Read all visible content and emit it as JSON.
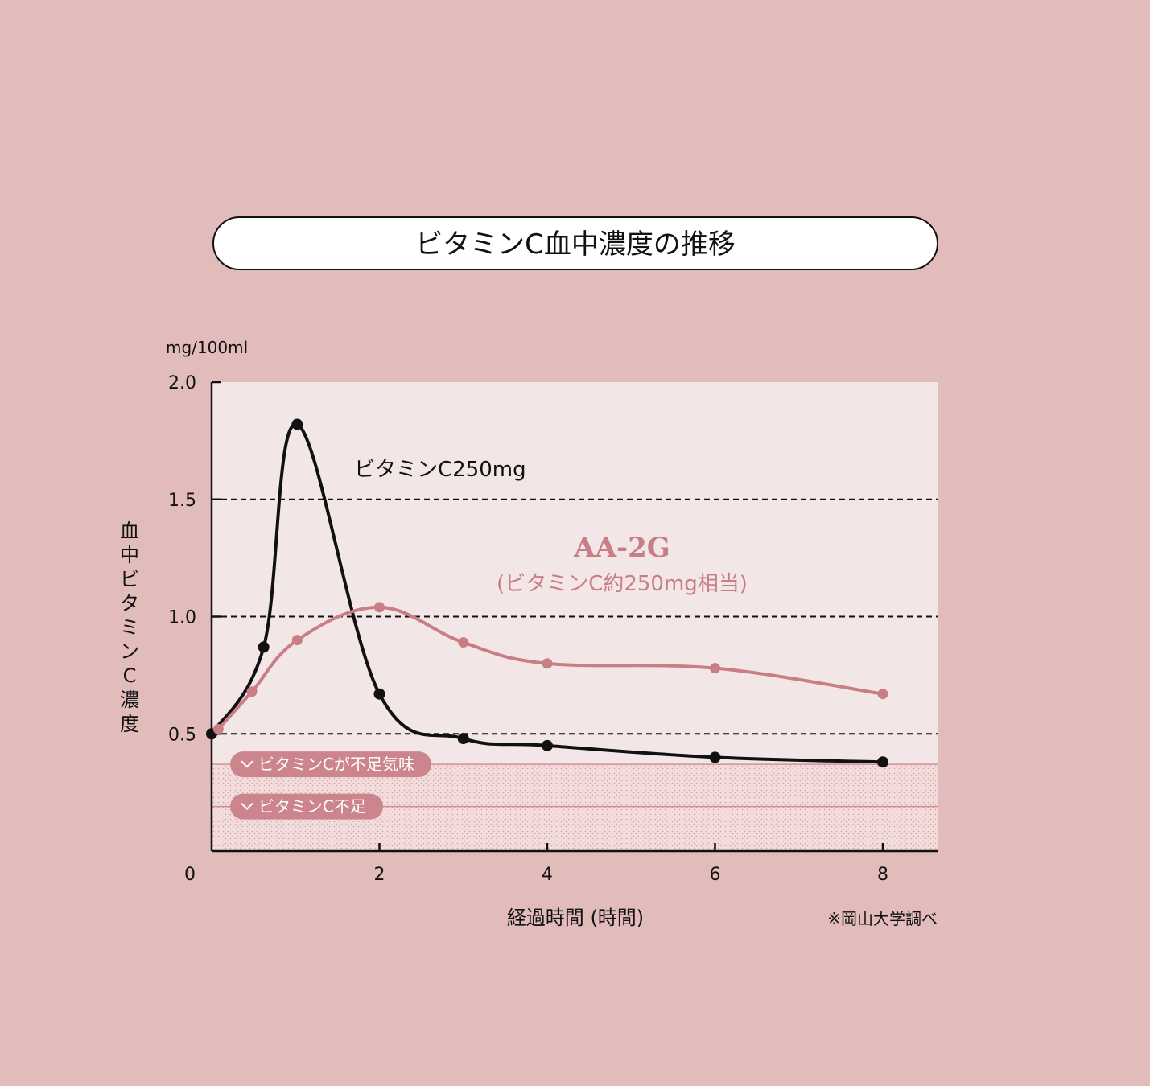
{
  "title": "ビタミンC血中濃度の推移",
  "unit_label": "mg/100ml",
  "source_note": "※岡山大学調べ",
  "chart_data": {
    "type": "line",
    "title": "ビタミンC血中濃度の推移",
    "xlabel": "経過時間 (時間)",
    "ylabel": "血中ビタミンC濃度",
    "xlim": [
      0,
      8.6
    ],
    "ylim": [
      0,
      2.0
    ],
    "x_ticks": [
      0,
      2,
      4,
      6,
      8
    ],
    "x_tick_labels": [
      "0",
      "2",
      "4",
      "6",
      "8"
    ],
    "y_ticks": [
      0.5,
      1.0,
      1.5,
      2.0
    ],
    "y_tick_labels": [
      "0.5",
      "1.0",
      "1.5",
      "2.0"
    ],
    "grid": "dashed horizontal at 0.5, 1.0, 1.5",
    "bands": [
      {
        "label": "ビタミンCが不足気味",
        "from": 0.19,
        "to": 0.37
      },
      {
        "label": "ビタミンC不足",
        "from": 0.0,
        "to": 0.19
      }
    ],
    "series": [
      {
        "name": "ビタミンC250mg",
        "color": "#111111",
        "x": [
          0,
          0.62,
          1.02,
          2.0,
          3.0,
          4.0,
          6.0,
          8.0
        ],
        "y": [
          0.5,
          0.87,
          1.82,
          0.67,
          0.48,
          0.45,
          0.4,
          0.38
        ]
      },
      {
        "name": "AA-2G",
        "subtitle": "(ビタミンC約250mg相当)",
        "color": "#c97d84",
        "x": [
          0.08,
          0.48,
          1.02,
          2.0,
          3.0,
          4.0,
          6.0,
          8.0
        ],
        "y": [
          0.52,
          0.68,
          0.9,
          1.04,
          0.89,
          0.8,
          0.78,
          0.67
        ]
      }
    ]
  }
}
